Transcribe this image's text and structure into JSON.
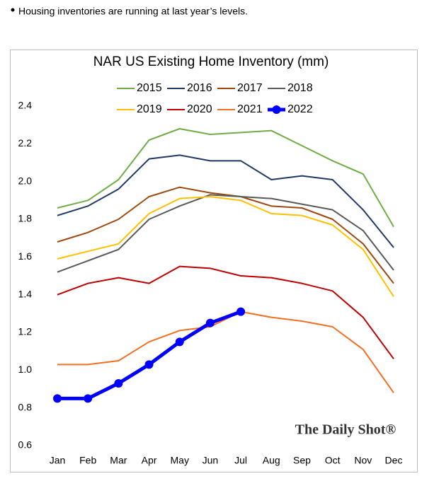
{
  "note": "Housing inventories are running at last year’s levels.",
  "chart_data": {
    "type": "line",
    "title": "NAR US Existing Home Inventory (mm)",
    "watermark": "The Daily Shot®",
    "categories": [
      "Jan",
      "Feb",
      "Mar",
      "Apr",
      "May",
      "Jun",
      "Jul",
      "Aug",
      "Sep",
      "Oct",
      "Nov",
      "Dec"
    ],
    "ylim": [
      0.6,
      2.4
    ],
    "yticks": [
      0.6,
      0.8,
      {
        "value": 1,
        "label": "1.0"
      },
      1.2,
      1.4,
      1.6,
      1.8,
      {
        "value": 2,
        "label": "2.0"
      },
      2.2,
      2.4
    ],
    "grid": false,
    "series": [
      {
        "name": "2015",
        "color": "#70ad47",
        "values": [
          1.86,
          1.9,
          2.01,
          2.22,
          2.28,
          2.25,
          2.26,
          2.27,
          2.19,
          2.11,
          2.04,
          1.76
        ]
      },
      {
        "name": "2016",
        "color": "#203864",
        "values": [
          1.82,
          1.87,
          1.96,
          2.12,
          2.14,
          2.11,
          2.11,
          2.01,
          2.03,
          2.01,
          1.85,
          1.65
        ]
      },
      {
        "name": "2017",
        "color": "#9e480e",
        "values": [
          1.68,
          1.73,
          1.8,
          1.92,
          1.97,
          1.94,
          1.92,
          1.87,
          1.86,
          1.8,
          1.67,
          1.46
        ]
      },
      {
        "name": "2018",
        "color": "#595959",
        "values": [
          1.52,
          1.58,
          1.64,
          1.8,
          1.87,
          1.93,
          1.92,
          1.91,
          1.88,
          1.85,
          1.74,
          1.53
        ]
      },
      {
        "name": "2019",
        "color": "#ffc000",
        "values": [
          1.59,
          1.63,
          1.67,
          1.83,
          1.91,
          1.92,
          1.9,
          1.83,
          1.82,
          1.77,
          1.64,
          1.39
        ]
      },
      {
        "name": "2020",
        "color": "#c00000",
        "values": [
          1.4,
          1.46,
          1.49,
          1.46,
          1.55,
          1.54,
          1.5,
          1.49,
          1.46,
          1.42,
          1.28,
          1.06
        ]
      },
      {
        "name": "2021",
        "color": "#f36f21",
        "values": [
          1.03,
          1.03,
          1.05,
          1.15,
          1.21,
          1.23,
          1.31,
          1.28,
          1.26,
          1.23,
          1.11,
          0.88
        ]
      },
      {
        "name": "2022",
        "color": "#0000ff",
        "values": [
          0.85,
          0.85,
          0.93,
          1.03,
          1.15,
          1.25,
          1.31,
          null,
          null,
          null,
          null,
          null
        ]
      }
    ]
  }
}
